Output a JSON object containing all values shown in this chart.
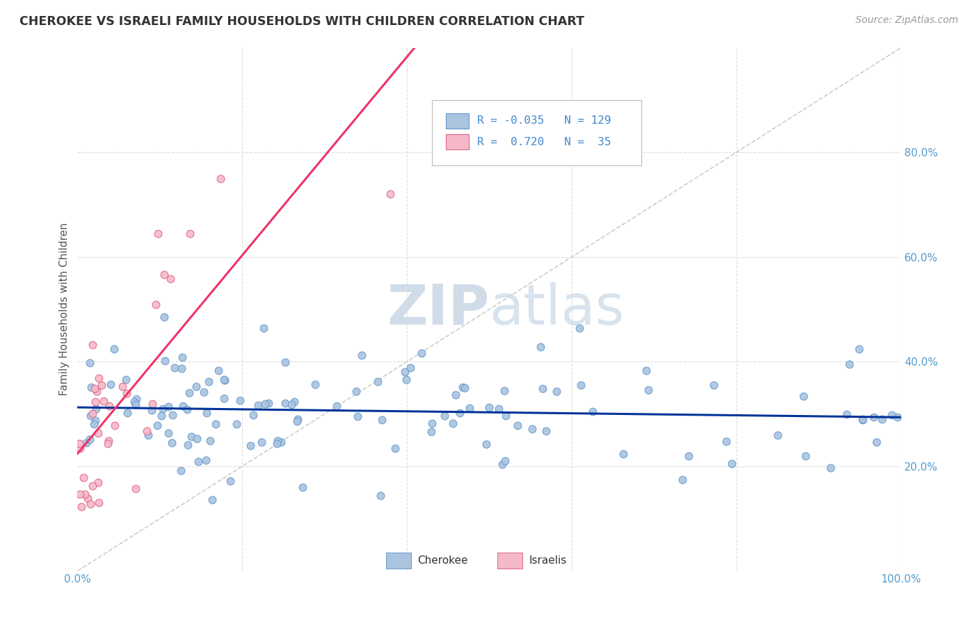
{
  "title": "CHEROKEE VS ISRAELI FAMILY HOUSEHOLDS WITH CHILDREN CORRELATION CHART",
  "source": "Source: ZipAtlas.com",
  "ylabel": "Family Households with Children",
  "xlim": [
    0,
    1.0
  ],
  "ylim": [
    0,
    1.0
  ],
  "cherokee_R": -0.035,
  "cherokee_N": 129,
  "israeli_R": 0.72,
  "israeli_N": 35,
  "cherokee_color": "#aac4e0",
  "cherokee_edge_color": "#6699cc",
  "cherokee_line_color": "#003399",
  "israeli_color": "#f5b8c8",
  "israeli_edge_color": "#dd6688",
  "israeli_line_color": "#ee3366",
  "diagonal_color": "#cccccc",
  "background_color": "#ffffff",
  "grid_color": "#dddddd",
  "title_color": "#333333",
  "axis_label_color": "#5599cc",
  "watermark_zip": "ZIP",
  "watermark_atlas": "atlas",
  "watermark_color": "#d0dce8",
  "legend_color": "#4488cc"
}
